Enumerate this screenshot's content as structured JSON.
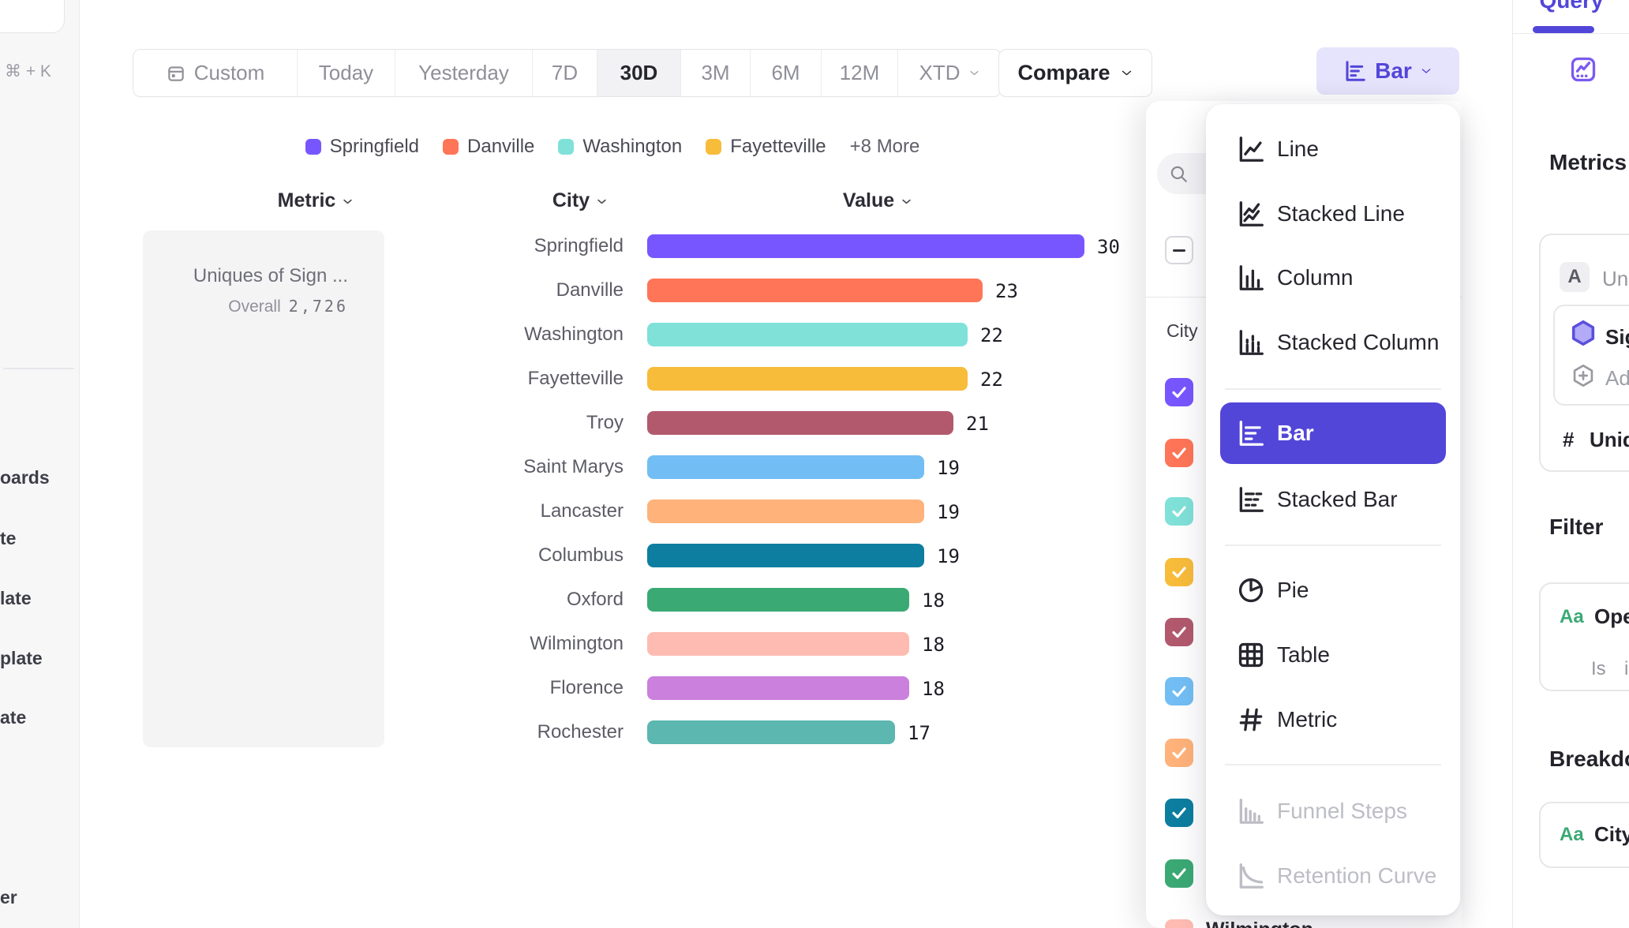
{
  "sidebar": {
    "shortcut": "⌘ + K",
    "items": [
      "oards",
      "te",
      "late",
      "plate",
      "ate",
      "er"
    ]
  },
  "toolbar": {
    "ranges": [
      {
        "label": "Custom",
        "icon": "calendar"
      },
      {
        "label": "Today"
      },
      {
        "label": "Yesterday"
      },
      {
        "label": "7D"
      },
      {
        "label": "30D",
        "selected": true
      },
      {
        "label": "3M"
      },
      {
        "label": "6M"
      },
      {
        "label": "12M"
      },
      {
        "label": "XTD",
        "chevron": true
      }
    ],
    "compare_label": "Compare",
    "chart_type_button": {
      "label": "Bar",
      "icon": "bar"
    }
  },
  "legend": {
    "items": [
      {
        "label": "Springfield",
        "color": "#7856FF"
      },
      {
        "label": "Danville",
        "color": "#FF7557"
      },
      {
        "label": "Washington",
        "color": "#80E1D9"
      },
      {
        "label": "Fayetteville",
        "color": "#F8BC3B"
      }
    ],
    "more_label": "+8 More"
  },
  "table_headers": {
    "metric": "Metric",
    "city": "City",
    "value": "Value"
  },
  "metric_card": {
    "title": "Uniques of Sign ...",
    "overall_label": "Overall",
    "overall_value": "2,726"
  },
  "chart_data": {
    "type": "bar",
    "title": "Uniques of Sign ...",
    "overall_total": 2726,
    "orientation": "horizontal",
    "xlabel": "Value",
    "ylabel": "City",
    "xlim": [
      0,
      30
    ],
    "grid": false,
    "categories": [
      "Springfield",
      "Danville",
      "Washington",
      "Fayetteville",
      "Troy",
      "Saint Marys",
      "Lancaster",
      "Columbus",
      "Oxford",
      "Wilmington",
      "Florence",
      "Rochester"
    ],
    "values": [
      30,
      23,
      22,
      22,
      21,
      19,
      19,
      19,
      18,
      18,
      18,
      17
    ],
    "colors": [
      "#7856FF",
      "#FF7557",
      "#80E1D9",
      "#F8BC3B",
      "#B2596E",
      "#72BEF4",
      "#FFB27A",
      "#0D7EA0",
      "#3BA974",
      "#FEBBB2",
      "#CA80DC",
      "#5BB7AF"
    ]
  },
  "selector_panel": {
    "header": "City",
    "select_all_state": "indeterminate",
    "checkbox_colors": [
      "#7856FF",
      "#FF7557",
      "#80E1D9",
      "#F8BC3B",
      "#B2596E",
      "#72BEF4",
      "#FFB27A",
      "#0D7EA0",
      "#3BA974",
      "#FEBBB2"
    ],
    "partial_visible_label": "Wilmington"
  },
  "chart_type_menu": {
    "items": [
      {
        "label": "Line",
        "icon": "line"
      },
      {
        "label": "Stacked Line",
        "icon": "stacked-line"
      },
      {
        "label": "Column",
        "icon": "column"
      },
      {
        "label": "Stacked Column",
        "icon": "stacked-column",
        "divider_after": true
      },
      {
        "label": "Bar",
        "icon": "bar",
        "selected": true
      },
      {
        "label": "Stacked Bar",
        "icon": "stacked-bar",
        "divider_after": true
      },
      {
        "label": "Pie",
        "icon": "pie"
      },
      {
        "label": "Table",
        "icon": "table"
      },
      {
        "label": "Metric",
        "icon": "hash",
        "divider_after": true
      },
      {
        "label": "Funnel Steps",
        "icon": "funnel",
        "disabled": true
      },
      {
        "label": "Retention Curve",
        "icon": "retention",
        "disabled": true
      }
    ]
  },
  "right_panel": {
    "tab": "Query",
    "metrics_heading": "Metrics",
    "metric_badge": "A",
    "metric_label": "Uniques",
    "event_label": "Sign up",
    "add_label": "Add",
    "hash_symbol": "#",
    "total_label": "Uniques",
    "filter_heading": "Filter",
    "type_icon_text": "Aa",
    "filter_label": "Opened",
    "filter_operator": "Is",
    "filter_value": "in",
    "breakdown_heading": "Breakdown",
    "breakdown_label": "City"
  },
  "colors": {
    "accent": "#5246D9",
    "accent_light": "#E6E3FC",
    "insights_icon": "#7A5AF0",
    "green_type": "#3BA974"
  }
}
